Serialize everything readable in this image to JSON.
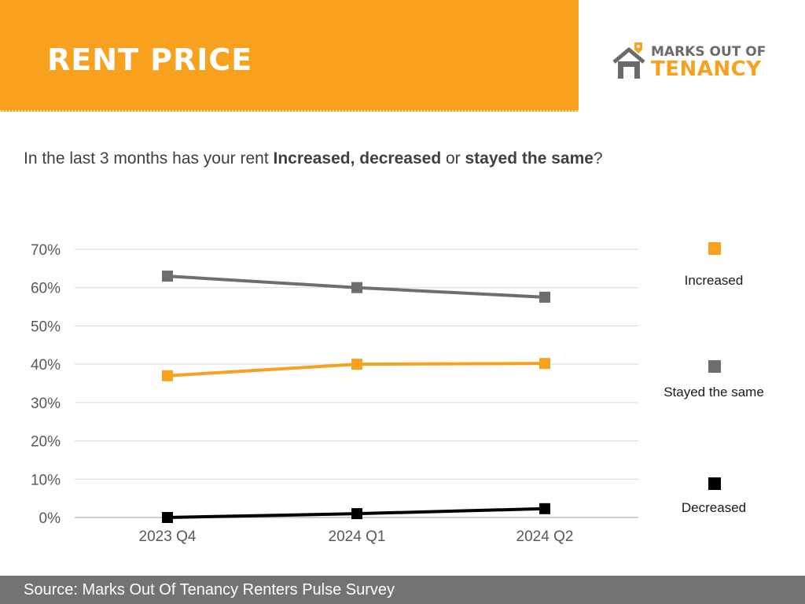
{
  "header": {
    "title": "RENT PRICE",
    "background_color": "#f7a11e"
  },
  "logo": {
    "line1": "MARKS OUT OF",
    "line2": "TENANCY",
    "icon": "house-pin-icon"
  },
  "question": {
    "part1": "In the last 3 months has your rent ",
    "part2": "Increased, decreased",
    "part3": " or ",
    "part4": "stayed the same",
    "part5": "?"
  },
  "footer": {
    "source": "Source: Marks Out Of Tenancy Renters Pulse Survey"
  },
  "chart_data": {
    "type": "line",
    "title": "",
    "xlabel": "",
    "ylabel": "",
    "categories": [
      "2023 Q4",
      "2024 Q1",
      "2024 Q2"
    ],
    "ylim": [
      0,
      70
    ],
    "yticks": [
      "0%",
      "10%",
      "20%",
      "30%",
      "40%",
      "50%",
      "60%",
      "70%"
    ],
    "grid": true,
    "legend_position": "right",
    "series": [
      {
        "name": "Increased",
        "values": [
          37,
          40,
          40.2
        ],
        "color": "#f7a11e"
      },
      {
        "name": "Stayed the same",
        "values": [
          63,
          60,
          57.5
        ],
        "color": "#6e6e6e"
      },
      {
        "name": "Decreased",
        "values": [
          0,
          1,
          2.3
        ],
        "color": "#000000"
      }
    ]
  }
}
